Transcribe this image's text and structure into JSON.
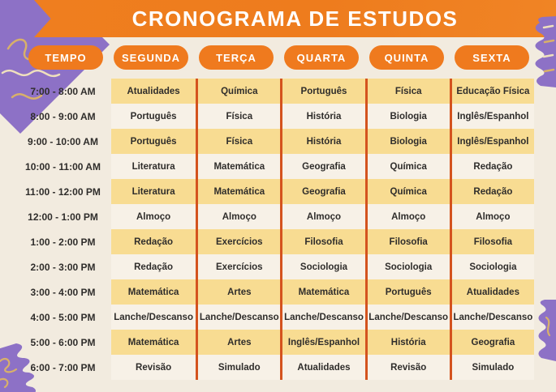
{
  "title": "CRONOGRAMA DE ESTUDOS",
  "schedule": {
    "columns": [
      "TEMPO",
      "SEGUNDA",
      "TERÇA",
      "QUARTA",
      "QUINTA",
      "SEXTA"
    ],
    "rows": [
      {
        "time": "7:00 - 8:00 AM",
        "highlight": true,
        "cells": [
          "Atualidades",
          "Química",
          "Português",
          "Física",
          "Educação Física"
        ]
      },
      {
        "time": "8:00 - 9:00 AM",
        "highlight": false,
        "cells": [
          "Português",
          "Física",
          "História",
          "Biologia",
          "Inglês/Espanhol"
        ]
      },
      {
        "time": "9:00 - 10:00 AM",
        "highlight": true,
        "cells": [
          "Português",
          "Física",
          "História",
          "Biologia",
          "Inglês/Espanhol"
        ]
      },
      {
        "time": "10:00 - 11:00 AM",
        "highlight": false,
        "cells": [
          "Literatura",
          "Matemática",
          "Geografia",
          "Química",
          "Redação"
        ]
      },
      {
        "time": "11:00 - 12:00 PM",
        "highlight": true,
        "cells": [
          "Literatura",
          "Matemática",
          "Geografia",
          "Química",
          "Redação"
        ]
      },
      {
        "time": "12:00 - 1:00 PM",
        "highlight": false,
        "cells": [
          "Almoço",
          "Almoço",
          "Almoço",
          "Almoço",
          "Almoço"
        ]
      },
      {
        "time": "1:00 - 2:00 PM",
        "highlight": true,
        "cells": [
          "Redação",
          "Exercícios",
          "Filosofia",
          "Filosofia",
          "Filosofia"
        ]
      },
      {
        "time": "2:00 - 3:00 PM",
        "highlight": false,
        "cells": [
          "Redação",
          "Exercícios",
          "Sociologia",
          "Sociologia",
          "Sociologia"
        ]
      },
      {
        "time": "3:00 - 4:00 PM",
        "highlight": true,
        "cells": [
          "Matemática",
          "Artes",
          "Matemática",
          "Português",
          "Atualidades"
        ]
      },
      {
        "time": "4:00 - 5:00 PM",
        "highlight": false,
        "cells": [
          "Lanche/Descanso",
          "Lanche/Descanso",
          "Lanche/Descanso",
          "Lanche/Descanso",
          "Lanche/Descanso"
        ]
      },
      {
        "time": "5:00 - 6:00 PM",
        "highlight": true,
        "cells": [
          "Matemática",
          "Artes",
          "Inglês/Espanhol",
          "História",
          "Geografia"
        ]
      },
      {
        "time": "6:00 - 7:00 PM",
        "highlight": false,
        "cells": [
          "Revisão",
          "Simulado",
          "Atualidades",
          "Revisão",
          "Simulado"
        ]
      }
    ]
  },
  "colors": {
    "background": "#f2ebdf",
    "banner_orange": "#ee7d1f",
    "pill_orange": "#ef7a1e",
    "row_highlight_yellow": "#f8dc92",
    "row_light": "#f7f1e7",
    "divider_orange": "#d4531e",
    "text_dark": "#2f2d2b",
    "decor_purple": "#8d71c6",
    "decor_squiggle_gold": "#d8b06a",
    "decor_squiggle_cream": "#efe0bd"
  },
  "icons": {
    "decor_top_left": "purple-diamond-with-squiggles",
    "decor_top_right": "purple-torn-paper",
    "decor_bottom_left": "purple-torn-paper-with-squiggles",
    "decor_bottom_right": "purple-torn-paper-with-squiggle"
  }
}
